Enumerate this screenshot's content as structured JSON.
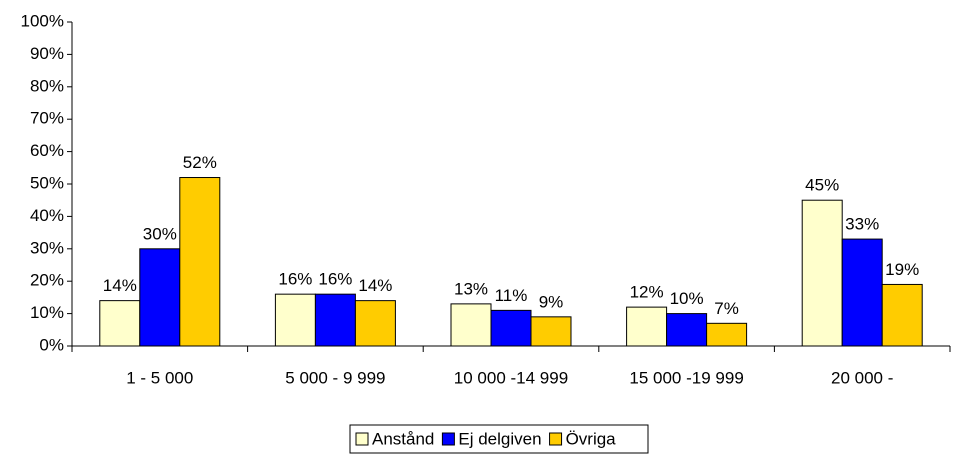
{
  "chart_data": {
    "type": "bar",
    "categories": [
      "1 - 5 000",
      "5 000 - 9 999",
      "10 000 -14 999",
      "15 000 -19 999",
      "20 000 -"
    ],
    "series": [
      {
        "name": "Anstånd",
        "color": "#FFFFCC",
        "values": [
          14,
          16,
          13,
          12,
          45
        ],
        "value_labels": [
          "14%",
          "16%",
          "13%",
          "12%",
          "45%"
        ]
      },
      {
        "name": "Ej delgiven",
        "color": "#0000FF",
        "values": [
          30,
          16,
          11,
          10,
          33
        ],
        "value_labels": [
          "30%",
          "16%",
          "11%",
          "10%",
          "33%"
        ]
      },
      {
        "name": "Övriga",
        "color": "#FFCC00",
        "values": [
          52,
          14,
          9,
          7,
          19
        ],
        "value_labels": [
          "52%",
          "14%",
          "9%",
          "7%",
          "19%"
        ]
      }
    ],
    "ylim": [
      0,
      100
    ],
    "yticks": [
      {
        "value": 0,
        "label": "0%"
      },
      {
        "value": 10,
        "label": "10%"
      },
      {
        "value": 20,
        "label": "20%"
      },
      {
        "value": 30,
        "label": "30%"
      },
      {
        "value": 40,
        "label": "40%"
      },
      {
        "value": 50,
        "label": "50%"
      },
      {
        "value": 60,
        "label": "60%"
      },
      {
        "value": 70,
        "label": "70%"
      },
      {
        "value": 80,
        "label": "80%"
      },
      {
        "value": 90,
        "label": "90%"
      },
      {
        "value": 100,
        "label": "100%"
      }
    ],
    "grid": false
  }
}
